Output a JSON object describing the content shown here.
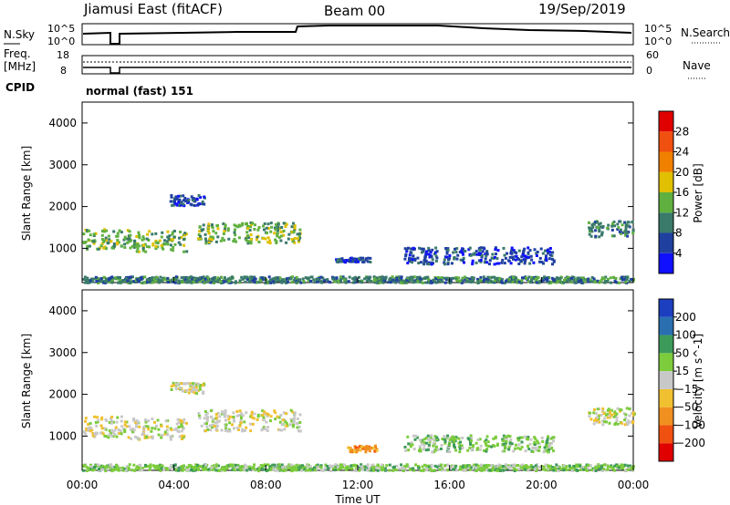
{
  "header": {
    "station": "Jiamusi East (fitACF)",
    "beam": "Beam 00",
    "date": "19/Sep/2019"
  },
  "strip_labels": {
    "nsky": "N.Sky",
    "nsearch": "N.Search",
    "freq_line1": "Freq.",
    "freq_line2": "[MHz]",
    "nave": "Nave",
    "cpid": "CPID",
    "nsky_hi": "10^5",
    "nsky_lo": "10^0",
    "nsearch_hi": "10^5",
    "nsearch_lo": "10^0",
    "freq_hi": "18",
    "freq_lo": "8",
    "nave_hi": "60",
    "nave_lo": "0",
    "cpid_text": "normal (fast) 151"
  },
  "axes": {
    "xlabel": "Time UT",
    "ylabel": "Slant Range [km]",
    "power_label": "Power [dB]",
    "velocity_label": "Velocity [m s^-1]"
  },
  "chart_data": [
    {
      "type": "heatmap",
      "name": "power",
      "x_unit": "hours UT",
      "xlim": [
        0,
        24
      ],
      "ylim": [
        180,
        4500
      ],
      "y_ticks": [
        "1000",
        "2000",
        "3000",
        "4000"
      ],
      "x_ticks": [
        "00:00",
        "04:00",
        "08:00",
        "12:00",
        "16:00",
        "20:00",
        "00:00"
      ],
      "colorbar": {
        "label": "Power [dB]",
        "tick_labels": [
          "4",
          "8",
          "12",
          "16",
          "20",
          "24",
          "28"
        ],
        "colors": [
          "#1010ff",
          "#2040a0",
          "#3a7a6a",
          "#60b040",
          "#e0c000",
          "#f08000",
          "#f05010",
          "#e00000"
        ]
      },
      "scatter_regions": [
        {
          "t": [
            0.0,
            2.0
          ],
          "r": [
            1000,
            1500
          ],
          "level": 3
        },
        {
          "t": [
            2.0,
            4.5
          ],
          "r": [
            950,
            1450
          ],
          "level": 3
        },
        {
          "t": [
            5.0,
            9.5
          ],
          "r": [
            1150,
            1650
          ],
          "level": 3
        },
        {
          "t": [
            3.8,
            5.3
          ],
          "r": [
            2050,
            2300
          ],
          "level": 1
        },
        {
          "t": [
            11.0,
            12.5
          ],
          "r": [
            700,
            800
          ],
          "level": 1
        },
        {
          "t": [
            14.0,
            20.5
          ],
          "r": [
            650,
            1050
          ],
          "level": 1
        },
        {
          "t": [
            22.0,
            24.0
          ],
          "r": [
            1300,
            1700
          ],
          "level": 2
        },
        {
          "t": [
            0.0,
            24.0
          ],
          "r": [
            200,
            350
          ],
          "level": 2
        }
      ]
    },
    {
      "type": "heatmap",
      "name": "velocity",
      "x_unit": "hours UT",
      "xlim": [
        0,
        24
      ],
      "ylim": [
        180,
        4500
      ],
      "y_ticks": [
        "1000",
        "2000",
        "3000",
        "4000"
      ],
      "x_ticks": [
        "00:00",
        "04:00",
        "08:00",
        "12:00",
        "16:00",
        "20:00",
        "00:00"
      ],
      "colorbar": {
        "label": "Velocity [m s^-1]",
        "tick_labels": [
          "200",
          "100",
          "50",
          "15",
          "−15",
          "−50",
          "−100",
          "−200"
        ],
        "colors": [
          "#1c3fbf",
          "#2a6fb0",
          "#3c9a5a",
          "#7ccc3c",
          "#c8c8c8",
          "#f0c030",
          "#f09020",
          "#f05010",
          "#e00000"
        ]
      },
      "scatter_regions": [
        {
          "t": [
            0.0,
            2.0
          ],
          "r": [
            1000,
            1500
          ],
          "level": 4
        },
        {
          "t": [
            2.0,
            4.5
          ],
          "r": [
            950,
            1450
          ],
          "level": 4
        },
        {
          "t": [
            5.0,
            9.5
          ],
          "r": [
            1150,
            1650
          ],
          "level": 4
        },
        {
          "t": [
            3.8,
            5.3
          ],
          "r": [
            2050,
            2300
          ],
          "level": 4
        },
        {
          "t": [
            11.5,
            12.8
          ],
          "r": [
            650,
            800
          ],
          "level": 6
        },
        {
          "t": [
            14.0,
            20.5
          ],
          "r": [
            650,
            1050
          ],
          "level": 3
        },
        {
          "t": [
            22.0,
            24.0
          ],
          "r": [
            1300,
            1700
          ],
          "level": 4
        },
        {
          "t": [
            0.0,
            24.0
          ],
          "r": [
            200,
            350
          ],
          "level": 3
        }
      ]
    }
  ]
}
